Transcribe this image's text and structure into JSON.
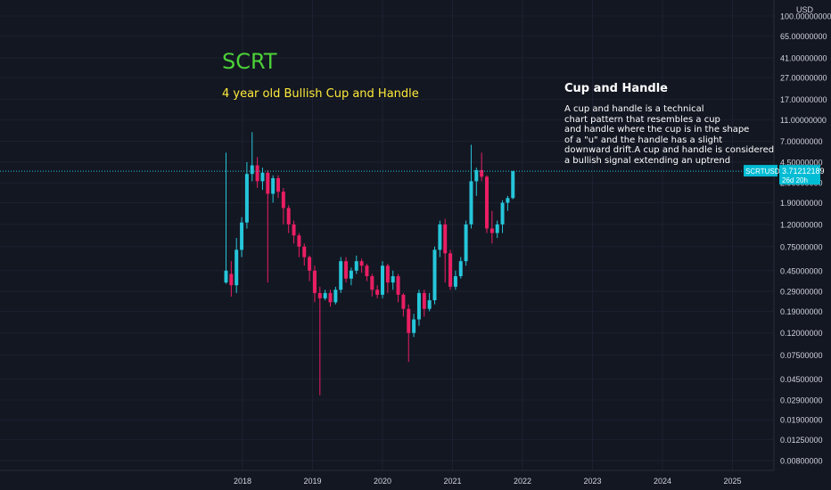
{
  "symbol_title": "SCRT",
  "symbol_subtitle": "4 year old Bullish Cup and Handle",
  "note": {
    "title": "Cup and Handle",
    "lines": [
      "A cup and handle is a technical",
      "chart pattern that resembles a cup",
      "and handle where the cup is in the shape",
      "of a \"u\" and the handle has a slight",
      "downward drift.A cup and handle is considered",
      "a bullish signal extending an uptrend"
    ]
  },
  "price_badge": {
    "symbol": "SCRTUSD",
    "price": "3.71212189",
    "countdown": "26d 20h"
  },
  "colors": {
    "background": "#131722",
    "up": "#26c6da",
    "down": "#e91e63",
    "axis_text": "#d1d4dc",
    "badge": "#00bcd4"
  },
  "chart_data": {
    "type": "candlestick",
    "scale": "log",
    "currency": "USD",
    "ylim": [
      0.0065,
      130
    ],
    "y_ticks": [
      "100.00000000",
      "65.00000000",
      "41.00000000",
      "27.00000000",
      "17.00000000",
      "11.00000000",
      "7.00000000",
      "4.50000000",
      "2.90000000",
      "1.90000000",
      "1.20000000",
      "0.75000000",
      "0.45000000",
      "0.29000000",
      "0.19000000",
      "0.12000000",
      "0.07500000",
      "0.04500000",
      "0.02900000",
      "0.01900000",
      "0.01250000",
      "0.00800000"
    ],
    "x_ticks": [
      "2018",
      "2019",
      "2020",
      "2021",
      "2022",
      "2023",
      "2024",
      "2025"
    ],
    "last_price": 3.71212189,
    "candles": [
      [
        0.35,
        0.45,
        5.5,
        0.34
      ],
      [
        0.42,
        0.33,
        0.55,
        0.26
      ],
      [
        0.33,
        0.7,
        0.9,
        0.28
      ],
      [
        0.7,
        1.25,
        1.4,
        0.6
      ],
      [
        1.25,
        3.5,
        4.5,
        1.1
      ],
      [
        3.5,
        4.2,
        8.5,
        3.0
      ],
      [
        4.2,
        3.0,
        5.0,
        2.6
      ],
      [
        3.0,
        3.6,
        4.0,
        2.5
      ],
      [
        3.6,
        2.3,
        3.8,
        0.35
      ],
      [
        2.3,
        3.2,
        3.4,
        1.9
      ],
      [
        3.2,
        2.4,
        3.4,
        2.1
      ],
      [
        2.4,
        1.7,
        2.6,
        1.2
      ],
      [
        1.7,
        1.2,
        1.8,
        1.0
      ],
      [
        1.2,
        0.95,
        1.3,
        0.8
      ],
      [
        0.95,
        0.75,
        1.0,
        0.6
      ],
      [
        0.75,
        0.6,
        0.8,
        0.5
      ],
      [
        0.6,
        0.45,
        0.62,
        0.36
      ],
      [
        0.45,
        0.28,
        0.5,
        0.23
      ],
      [
        0.28,
        0.25,
        0.32,
        0.032
      ],
      [
        0.25,
        0.28,
        0.3,
        0.24
      ],
      [
        0.28,
        0.23,
        0.3,
        0.21
      ],
      [
        0.23,
        0.3,
        0.32,
        0.22
      ],
      [
        0.3,
        0.55,
        0.6,
        0.28
      ],
      [
        0.55,
        0.38,
        0.6,
        0.35
      ],
      [
        0.38,
        0.45,
        0.48,
        0.33
      ],
      [
        0.45,
        0.55,
        0.62,
        0.42
      ],
      [
        0.55,
        0.5,
        0.58,
        0.43
      ],
      [
        0.5,
        0.4,
        0.52,
        0.36
      ],
      [
        0.4,
        0.3,
        0.42,
        0.26
      ],
      [
        0.3,
        0.27,
        0.33,
        0.25
      ],
      [
        0.27,
        0.5,
        0.55,
        0.25
      ],
      [
        0.5,
        0.35,
        0.52,
        0.28
      ],
      [
        0.35,
        0.4,
        0.45,
        0.3
      ],
      [
        0.4,
        0.27,
        0.42,
        0.23
      ],
      [
        0.27,
        0.2,
        0.28,
        0.17
      ],
      [
        0.2,
        0.12,
        0.22,
        0.065
      ],
      [
        0.12,
        0.16,
        0.18,
        0.11
      ],
      [
        0.16,
        0.28,
        0.3,
        0.14
      ],
      [
        0.28,
        0.2,
        0.3,
        0.17
      ],
      [
        0.2,
        0.24,
        0.28,
        0.19
      ],
      [
        0.24,
        0.7,
        0.75,
        0.22
      ],
      [
        0.7,
        1.2,
        1.3,
        0.6
      ],
      [
        1.2,
        0.65,
        1.35,
        0.35
      ],
      [
        0.65,
        0.32,
        0.7,
        0.3
      ],
      [
        0.32,
        0.4,
        0.45,
        0.3
      ],
      [
        0.4,
        0.55,
        0.6,
        0.38
      ],
      [
        0.55,
        1.2,
        1.3,
        0.5
      ],
      [
        1.2,
        3.0,
        6.5,
        1.1
      ],
      [
        3.0,
        3.8,
        4.0,
        2.2
      ],
      [
        3.8,
        3.3,
        5.5,
        3.0
      ],
      [
        3.3,
        1.1,
        3.4,
        1.0
      ],
      [
        1.1,
        1.0,
        1.6,
        0.8
      ],
      [
        1.0,
        1.2,
        1.3,
        0.9
      ],
      [
        1.2,
        1.9,
        2.0,
        1.0
      ],
      [
        1.9,
        2.1,
        2.2,
        1.6
      ],
      [
        2.1,
        3.71,
        3.75,
        2.05
      ]
    ]
  }
}
